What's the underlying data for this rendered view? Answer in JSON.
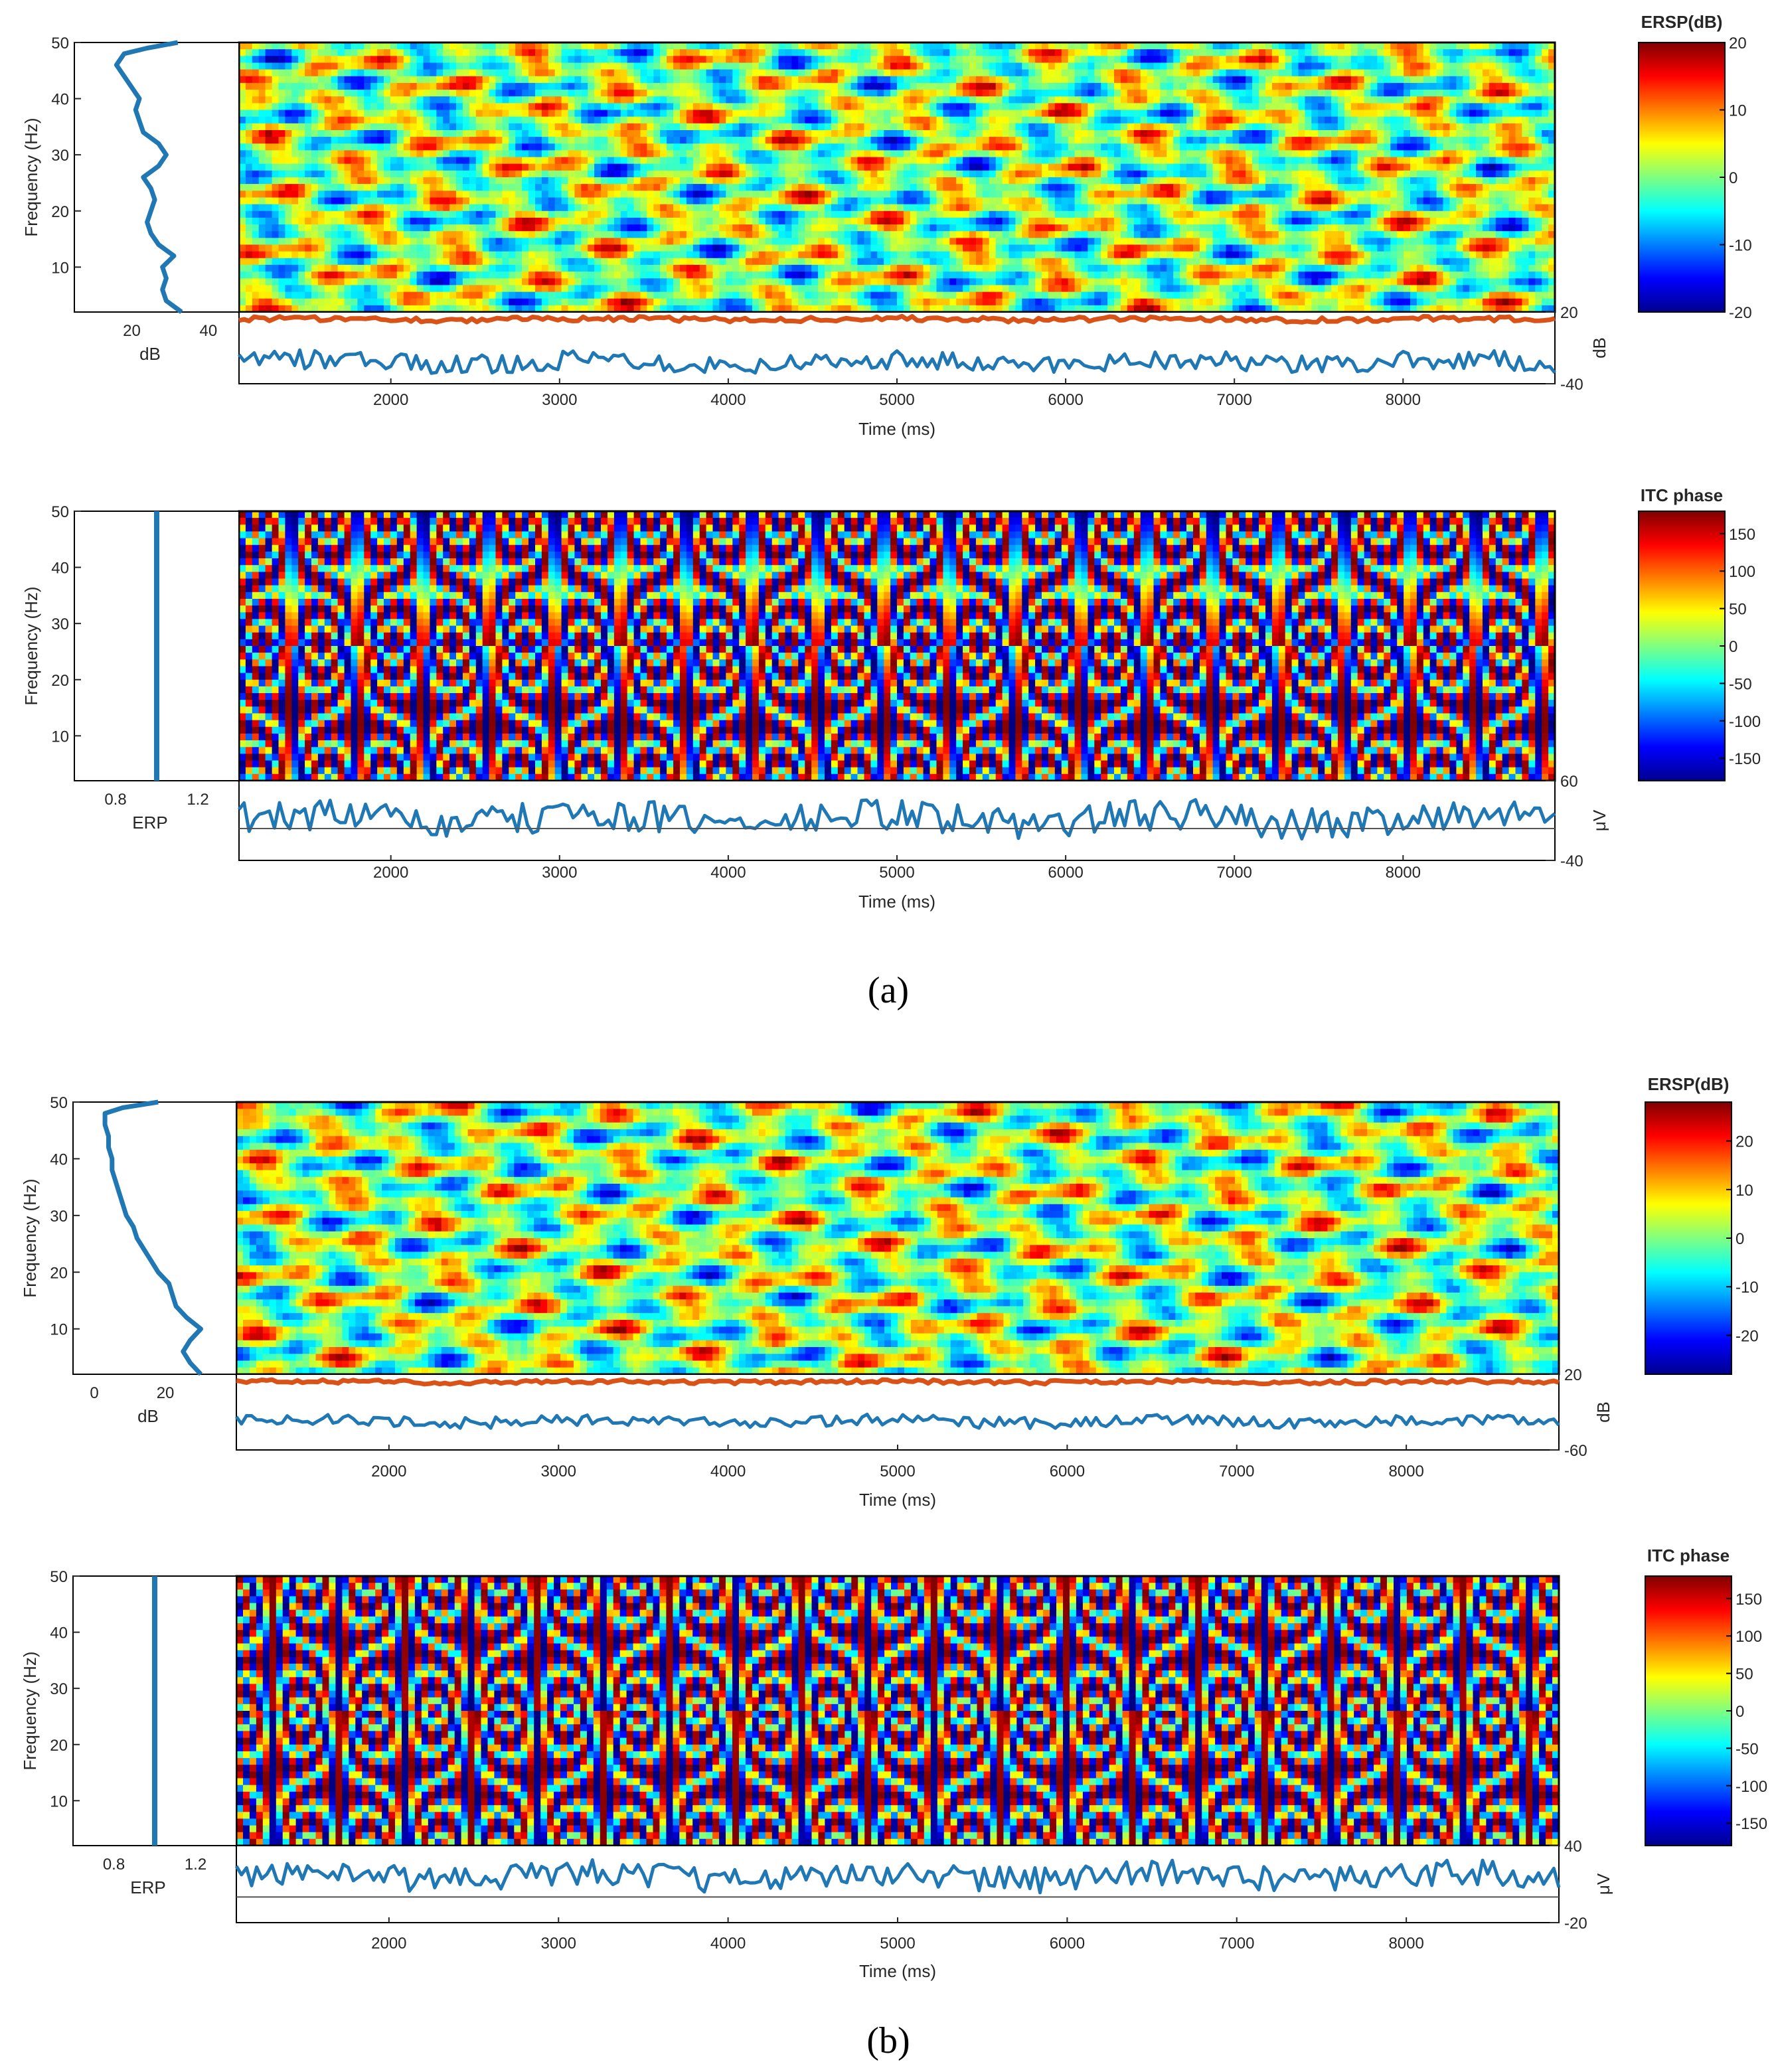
{
  "figure": {
    "captions": [
      "(a)",
      "(b)"
    ]
  },
  "chart_data": [
    {
      "id": "a-ersp",
      "type": "heatmap",
      "title": "ERSP(dB)",
      "ylabel": "Frequency (Hz)",
      "xlabel": "Time (ms)",
      "x_ticks": [
        2000,
        3000,
        4000,
        5000,
        6000,
        7000,
        8000
      ],
      "y_ticks": [
        10,
        20,
        30,
        40,
        50
      ],
      "xlim": [
        1100,
        8900
      ],
      "ylim": [
        2,
        50
      ],
      "colorbar": {
        "ticks": [
          20,
          10,
          0,
          -10,
          -20
        ],
        "range": [
          -20,
          20
        ]
      },
      "side_panel": {
        "xlabel": "dB",
        "ticks": [
          20,
          40
        ],
        "xlim": [
          5,
          48
        ],
        "curve": {
          "freq": [
            2,
            4,
            6,
            8,
            10,
            12,
            14,
            16,
            18,
            20,
            22,
            24,
            26,
            28,
            30,
            32,
            34,
            36,
            38,
            40,
            42,
            44,
            46,
            48,
            49,
            50
          ],
          "value": [
            33,
            29,
            28,
            29,
            28,
            31,
            27,
            25,
            24,
            25,
            26,
            25,
            23,
            27,
            29,
            27,
            23,
            22,
            21,
            22,
            20,
            18,
            16,
            18,
            24,
            32
          ]
        }
      },
      "bottom_panel": {
        "unit": "dB",
        "ticks": [
          20,
          -40
        ],
        "upper_trace": {
          "mean": 14,
          "noise": 2
        },
        "lower_trace": {
          "mean": -22,
          "noise": 8
        }
      }
    },
    {
      "id": "a-itc",
      "type": "heatmap",
      "title": "ITC phase",
      "ylabel": "Frequency (Hz)",
      "xlabel": "Time (ms)",
      "x_ticks": [
        2000,
        3000,
        4000,
        5000,
        6000,
        7000,
        8000
      ],
      "y_ticks": [
        10,
        20,
        30,
        40,
        50
      ],
      "xlim": [
        1100,
        8900
      ],
      "ylim": [
        2,
        50
      ],
      "colorbar": {
        "ticks": [
          150,
          100,
          50,
          0,
          -50,
          -100,
          -150
        ],
        "range": [
          -180,
          180
        ]
      },
      "side_panel": {
        "xlabel": "ERP",
        "ticks": [
          0.8,
          1.2
        ],
        "xlim": [
          0.6,
          1.4
        ],
        "line_value": 1.0
      },
      "bottom_panel": {
        "unit": "μV",
        "ticks": [
          60,
          -40
        ],
        "lower_trace": {
          "mean": 12,
          "noise": 20
        }
      }
    },
    {
      "id": "b-ersp",
      "type": "heatmap",
      "title": "ERSP(dB)",
      "ylabel": "Frequency (Hz)",
      "xlabel": "Time (ms)",
      "x_ticks": [
        2000,
        3000,
        4000,
        5000,
        6000,
        7000,
        8000
      ],
      "y_ticks": [
        10,
        20,
        30,
        40,
        50
      ],
      "xlim": [
        1100,
        8900
      ],
      "ylim": [
        2,
        50
      ],
      "colorbar": {
        "ticks": [
          20,
          10,
          0,
          -10,
          -20
        ],
        "range": [
          -28,
          28
        ]
      },
      "side_panel": {
        "xlabel": "dB",
        "ticks": [
          0,
          20
        ],
        "xlim": [
          -6,
          40
        ],
        "curve": {
          "freq": [
            2,
            4,
            6,
            8,
            10,
            12,
            14,
            16,
            18,
            20,
            22,
            24,
            26,
            28,
            30,
            32,
            34,
            36,
            38,
            40,
            42,
            44,
            46,
            48,
            49,
            50
          ],
          "value": [
            30,
            27,
            25,
            27,
            30,
            26,
            23,
            22,
            21,
            18,
            16,
            14,
            12,
            11,
            9,
            8,
            7,
            6,
            5,
            5,
            4,
            4,
            3,
            3,
            8,
            18
          ]
        }
      },
      "bottom_panel": {
        "unit": "dB",
        "ticks": [
          20,
          -60
        ],
        "upper_trace": {
          "mean": 12,
          "noise": 2
        },
        "lower_trace": {
          "mean": -30,
          "noise": 6
        }
      }
    },
    {
      "id": "b-itc",
      "type": "heatmap",
      "title": "ITC phase",
      "ylabel": "Frequency (Hz)",
      "xlabel": "Time (ms)",
      "x_ticks": [
        2000,
        3000,
        4000,
        5000,
        6000,
        7000,
        8000
      ],
      "y_ticks": [
        10,
        20,
        30,
        40,
        50
      ],
      "xlim": [
        1100,
        8900
      ],
      "ylim": [
        2,
        50
      ],
      "colorbar": {
        "ticks": [
          150,
          100,
          50,
          0,
          -50,
          -100,
          -150
        ],
        "range": [
          -180,
          180
        ]
      },
      "side_panel": {
        "xlabel": "ERP",
        "ticks": [
          0.8,
          1.2
        ],
        "xlim": [
          0.6,
          1.4
        ],
        "line_value": 1.0
      },
      "bottom_panel": {
        "unit": "μV",
        "ticks": [
          40,
          -20
        ],
        "lower_trace": {
          "mean": 16,
          "noise": 10
        }
      }
    }
  ],
  "colors": {
    "trace_blue": "#1f77b4",
    "trace_orange": "#d95319",
    "axis": "#262626",
    "frame": "#000000"
  }
}
